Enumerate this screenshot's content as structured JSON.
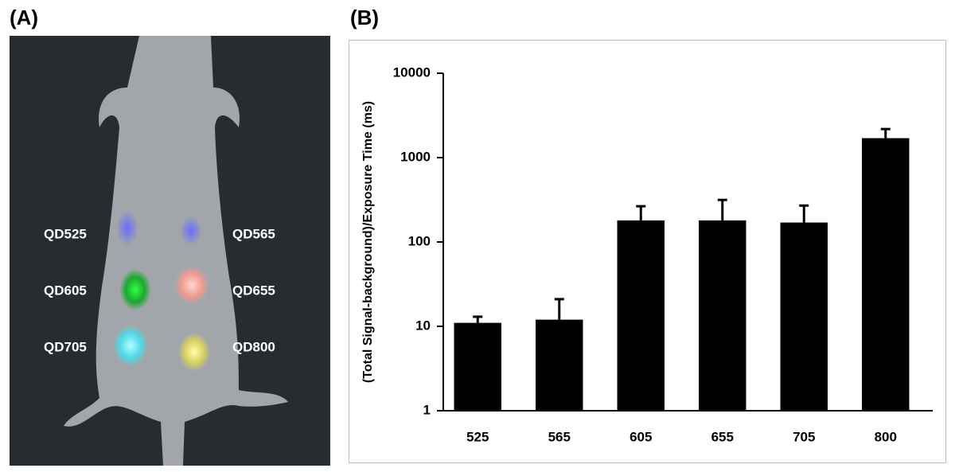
{
  "panel_a": {
    "label": "(A)",
    "probes": [
      "QD525",
      "QD565",
      "QD605",
      "QD655",
      "QD705",
      "QD800"
    ]
  },
  "panel_b": {
    "label": "(B)"
  },
  "chart_data": {
    "type": "bar",
    "ylabel": "(Total Signal-background)/Exposure Time (ms)",
    "categories": [
      "525",
      "565",
      "605",
      "655",
      "705",
      "800"
    ],
    "values": [
      11,
      12,
      180,
      180,
      170,
      1700
    ],
    "errors": [
      2,
      9,
      85,
      135,
      100,
      480
    ],
    "color": "#000000",
    "log_scale": true,
    "ylim": [
      1,
      10000
    ],
    "yticks": [
      1,
      10,
      100,
      1000,
      10000
    ]
  }
}
